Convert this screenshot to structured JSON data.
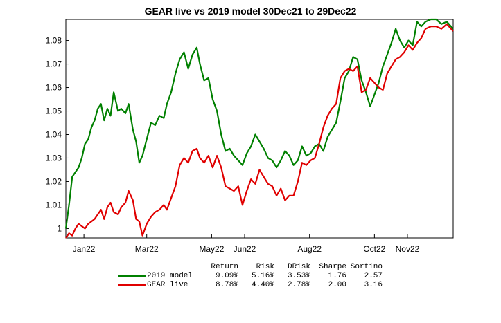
{
  "chart_data": {
    "type": "line",
    "title": "GEAR live vs 2019 model 30Dec21 to 29Dec22",
    "xlabel": "",
    "ylabel": "",
    "x_tick_labels": [
      "Jan22",
      "Mar22",
      "May22",
      "Jun22",
      "Aug22",
      "Oct22",
      "Nov22"
    ],
    "y_tick_labels": [
      "1",
      "1.01",
      "1.02",
      "1.03",
      "1.04",
      "1.05",
      "1.06",
      "1.07",
      "1.08"
    ],
    "ylim": [
      0.996,
      1.089
    ],
    "grid": false,
    "series": [
      {
        "name": "2019 model",
        "color": "#008000",
        "points": [
          [
            "2021-12-30",
            1.0
          ],
          [
            "2022-01-02",
            1.01
          ],
          [
            "2022-01-05",
            1.022
          ],
          [
            "2022-01-08",
            1.024
          ],
          [
            "2022-01-11",
            1.026
          ],
          [
            "2022-01-14",
            1.03
          ],
          [
            "2022-01-17",
            1.036
          ],
          [
            "2022-01-20",
            1.038
          ],
          [
            "2022-01-23",
            1.043
          ],
          [
            "2022-01-26",
            1.046
          ],
          [
            "2022-01-29",
            1.051
          ],
          [
            "2022-02-01",
            1.053
          ],
          [
            "2022-02-04",
            1.046
          ],
          [
            "2022-02-07",
            1.051
          ],
          [
            "2022-02-10",
            1.048
          ],
          [
            "2022-02-13",
            1.058
          ],
          [
            "2022-02-17",
            1.05
          ],
          [
            "2022-02-20",
            1.051
          ],
          [
            "2022-02-24",
            1.049
          ],
          [
            "2022-02-27",
            1.053
          ],
          [
            "2022-03-03",
            1.042
          ],
          [
            "2022-03-06",
            1.037
          ],
          [
            "2022-03-09",
            1.028
          ],
          [
            "2022-03-12",
            1.031
          ],
          [
            "2022-03-16",
            1.038
          ],
          [
            "2022-03-20",
            1.045
          ],
          [
            "2022-03-24",
            1.044
          ],
          [
            "2022-03-28",
            1.048
          ],
          [
            "2022-04-01",
            1.047
          ],
          [
            "2022-04-04",
            1.053
          ],
          [
            "2022-04-08",
            1.058
          ],
          [
            "2022-04-12",
            1.066
          ],
          [
            "2022-04-16",
            1.072
          ],
          [
            "2022-04-20",
            1.075
          ],
          [
            "2022-04-24",
            1.068
          ],
          [
            "2022-04-28",
            1.074
          ],
          [
            "2022-05-02",
            1.077
          ],
          [
            "2022-05-05",
            1.07
          ],
          [
            "2022-05-09",
            1.063
          ],
          [
            "2022-05-13",
            1.064
          ],
          [
            "2022-05-17",
            1.055
          ],
          [
            "2022-05-21",
            1.05
          ],
          [
            "2022-05-25",
            1.04
          ],
          [
            "2022-05-29",
            1.033
          ],
          [
            "2022-06-02",
            1.034
          ],
          [
            "2022-06-06",
            1.031
          ],
          [
            "2022-06-10",
            1.029
          ],
          [
            "2022-06-14",
            1.027
          ],
          [
            "2022-06-18",
            1.032
          ],
          [
            "2022-06-22",
            1.035
          ],
          [
            "2022-06-26",
            1.04
          ],
          [
            "2022-06-30",
            1.037
          ],
          [
            "2022-07-04",
            1.034
          ],
          [
            "2022-07-08",
            1.03
          ],
          [
            "2022-07-12",
            1.029
          ],
          [
            "2022-07-16",
            1.026
          ],
          [
            "2022-07-20",
            1.029
          ],
          [
            "2022-07-24",
            1.033
          ],
          [
            "2022-07-28",
            1.031
          ],
          [
            "2022-08-01",
            1.027
          ],
          [
            "2022-08-05",
            1.029
          ],
          [
            "2022-08-09",
            1.035
          ],
          [
            "2022-08-13",
            1.031
          ],
          [
            "2022-08-17",
            1.032
          ],
          [
            "2022-08-21",
            1.035
          ],
          [
            "2022-08-25",
            1.036
          ],
          [
            "2022-08-29",
            1.033
          ],
          [
            "2022-09-02",
            1.039
          ],
          [
            "2022-09-06",
            1.042
          ],
          [
            "2022-09-10",
            1.045
          ],
          [
            "2022-09-14",
            1.054
          ],
          [
            "2022-09-18",
            1.064
          ],
          [
            "2022-09-22",
            1.067
          ],
          [
            "2022-09-26",
            1.073
          ],
          [
            "2022-09-30",
            1.072
          ],
          [
            "2022-10-04",
            1.063
          ],
          [
            "2022-10-08",
            1.058
          ],
          [
            "2022-10-12",
            1.052
          ],
          [
            "2022-10-16",
            1.057
          ],
          [
            "2022-10-20",
            1.062
          ],
          [
            "2022-10-24",
            1.069
          ],
          [
            "2022-10-28",
            1.074
          ],
          [
            "2022-11-01",
            1.079
          ],
          [
            "2022-11-05",
            1.085
          ],
          [
            "2022-11-09",
            1.08
          ],
          [
            "2022-11-13",
            1.077
          ],
          [
            "2022-11-17",
            1.08
          ],
          [
            "2022-11-21",
            1.078
          ],
          [
            "2022-11-25",
            1.088
          ],
          [
            "2022-11-29",
            1.086
          ],
          [
            "2022-12-03",
            1.088
          ],
          [
            "2022-12-08",
            1.089
          ],
          [
            "2022-12-13",
            1.089
          ],
          [
            "2022-12-18",
            1.087
          ],
          [
            "2022-12-23",
            1.088
          ],
          [
            "2022-12-29",
            1.085
          ]
        ]
      },
      {
        "name": "GEAR live",
        "color": "#e00000",
        "points": [
          [
            "2021-12-30",
            0.996
          ],
          [
            "2022-01-02",
            0.998
          ],
          [
            "2022-01-05",
            0.997
          ],
          [
            "2022-01-08",
            1.0
          ],
          [
            "2022-01-11",
            1.002
          ],
          [
            "2022-01-14",
            1.001
          ],
          [
            "2022-01-17",
            1.0
          ],
          [
            "2022-01-20",
            1.002
          ],
          [
            "2022-01-23",
            1.003
          ],
          [
            "2022-01-26",
            1.004
          ],
          [
            "2022-01-29",
            1.006
          ],
          [
            "2022-02-01",
            1.008
          ],
          [
            "2022-02-04",
            1.004
          ],
          [
            "2022-02-07",
            1.009
          ],
          [
            "2022-02-10",
            1.011
          ],
          [
            "2022-02-13",
            1.007
          ],
          [
            "2022-02-17",
            1.006
          ],
          [
            "2022-02-20",
            1.009
          ],
          [
            "2022-02-24",
            1.011
          ],
          [
            "2022-02-27",
            1.016
          ],
          [
            "2022-03-03",
            1.012
          ],
          [
            "2022-03-06",
            1.004
          ],
          [
            "2022-03-09",
            1.003
          ],
          [
            "2022-03-12",
            0.997
          ],
          [
            "2022-03-16",
            1.002
          ],
          [
            "2022-03-20",
            1.005
          ],
          [
            "2022-03-24",
            1.007
          ],
          [
            "2022-03-28",
            1.008
          ],
          [
            "2022-04-01",
            1.01
          ],
          [
            "2022-04-04",
            1.008
          ],
          [
            "2022-04-08",
            1.013
          ],
          [
            "2022-04-12",
            1.018
          ],
          [
            "2022-04-16",
            1.027
          ],
          [
            "2022-04-20",
            1.03
          ],
          [
            "2022-04-24",
            1.028
          ],
          [
            "2022-04-28",
            1.033
          ],
          [
            "2022-05-02",
            1.034
          ],
          [
            "2022-05-05",
            1.03
          ],
          [
            "2022-05-09",
            1.028
          ],
          [
            "2022-05-13",
            1.031
          ],
          [
            "2022-05-17",
            1.026
          ],
          [
            "2022-05-21",
            1.031
          ],
          [
            "2022-05-25",
            1.026
          ],
          [
            "2022-05-29",
            1.018
          ],
          [
            "2022-06-02",
            1.017
          ],
          [
            "2022-06-06",
            1.016
          ],
          [
            "2022-06-10",
            1.018
          ],
          [
            "2022-06-14",
            1.01
          ],
          [
            "2022-06-18",
            1.016
          ],
          [
            "2022-06-22",
            1.021
          ],
          [
            "2022-06-26",
            1.019
          ],
          [
            "2022-06-30",
            1.025
          ],
          [
            "2022-07-04",
            1.022
          ],
          [
            "2022-07-08",
            1.019
          ],
          [
            "2022-07-12",
            1.018
          ],
          [
            "2022-07-16",
            1.014
          ],
          [
            "2022-07-20",
            1.017
          ],
          [
            "2022-07-24",
            1.012
          ],
          [
            "2022-07-28",
            1.014
          ],
          [
            "2022-08-01",
            1.014
          ],
          [
            "2022-08-05",
            1.02
          ],
          [
            "2022-08-09",
            1.028
          ],
          [
            "2022-08-13",
            1.027
          ],
          [
            "2022-08-17",
            1.029
          ],
          [
            "2022-08-21",
            1.03
          ],
          [
            "2022-08-25",
            1.036
          ],
          [
            "2022-08-29",
            1.043
          ],
          [
            "2022-09-02",
            1.048
          ],
          [
            "2022-09-06",
            1.051
          ],
          [
            "2022-09-10",
            1.053
          ],
          [
            "2022-09-14",
            1.064
          ],
          [
            "2022-09-18",
            1.067
          ],
          [
            "2022-09-22",
            1.068
          ],
          [
            "2022-09-26",
            1.067
          ],
          [
            "2022-09-30",
            1.069
          ],
          [
            "2022-10-04",
            1.058
          ],
          [
            "2022-10-08",
            1.059
          ],
          [
            "2022-10-12",
            1.064
          ],
          [
            "2022-10-16",
            1.062
          ],
          [
            "2022-10-20",
            1.06
          ],
          [
            "2022-10-24",
            1.059
          ],
          [
            "2022-10-28",
            1.066
          ],
          [
            "2022-11-01",
            1.069
          ],
          [
            "2022-11-05",
            1.072
          ],
          [
            "2022-11-09",
            1.073
          ],
          [
            "2022-11-13",
            1.075
          ],
          [
            "2022-11-17",
            1.078
          ],
          [
            "2022-11-21",
            1.076
          ],
          [
            "2022-11-25",
            1.079
          ],
          [
            "2022-11-29",
            1.081
          ],
          [
            "2022-12-03",
            1.085
          ],
          [
            "2022-12-08",
            1.086
          ],
          [
            "2022-12-13",
            1.086
          ],
          [
            "2022-12-18",
            1.085
          ],
          [
            "2022-12-23",
            1.087
          ],
          [
            "2022-12-29",
            1.084
          ]
        ]
      }
    ],
    "stats_table": {
      "headers": [
        "Return",
        "Risk",
        "DRisk",
        "Sharpe",
        "Sortino"
      ],
      "rows": [
        {
          "name": "2019 model",
          "color": "#008000",
          "values": [
            "9.09%",
            "5.16%",
            "3.53%",
            "1.76",
            "2.57"
          ]
        },
        {
          "name": "GEAR live",
          "color": "#e00000",
          "values": [
            "8.78%",
            "4.40%",
            "2.78%",
            "2.00",
            "3.16"
          ]
        }
      ]
    }
  }
}
